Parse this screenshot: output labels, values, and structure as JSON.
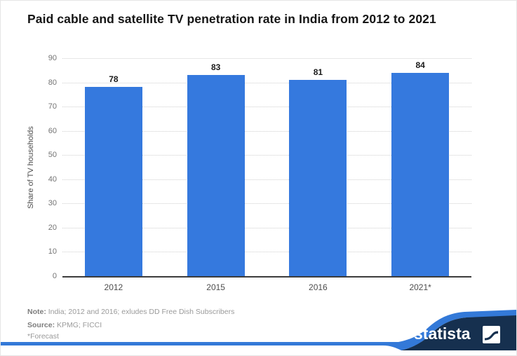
{
  "chart_data": {
    "type": "bar",
    "title": "Paid cable and satellite TV penetration rate in India from 2012 to 2021",
    "categories": [
      "2012",
      "2015",
      "2016",
      "2021*"
    ],
    "values": [
      78,
      83,
      81,
      84
    ],
    "xlabel": "",
    "ylabel": "Share of TV households",
    "ylim": [
      0,
      90
    ],
    "ytick_step": 10,
    "grid": true,
    "legend": "none",
    "bar_color": "#3579de"
  },
  "footer": {
    "note_label": "Note:",
    "note_text": " India; 2012 and 2016; exludes DD Free Dish Subscribers",
    "source_label": "Source:",
    "source_text": " KPMG; FICCI",
    "forecast_text": "*Forecast"
  },
  "branding": {
    "logo_text": "statista",
    "navy": "#16304f",
    "accent_blue": "#3379d8",
    "icon": "statista-swoosh-icon"
  }
}
